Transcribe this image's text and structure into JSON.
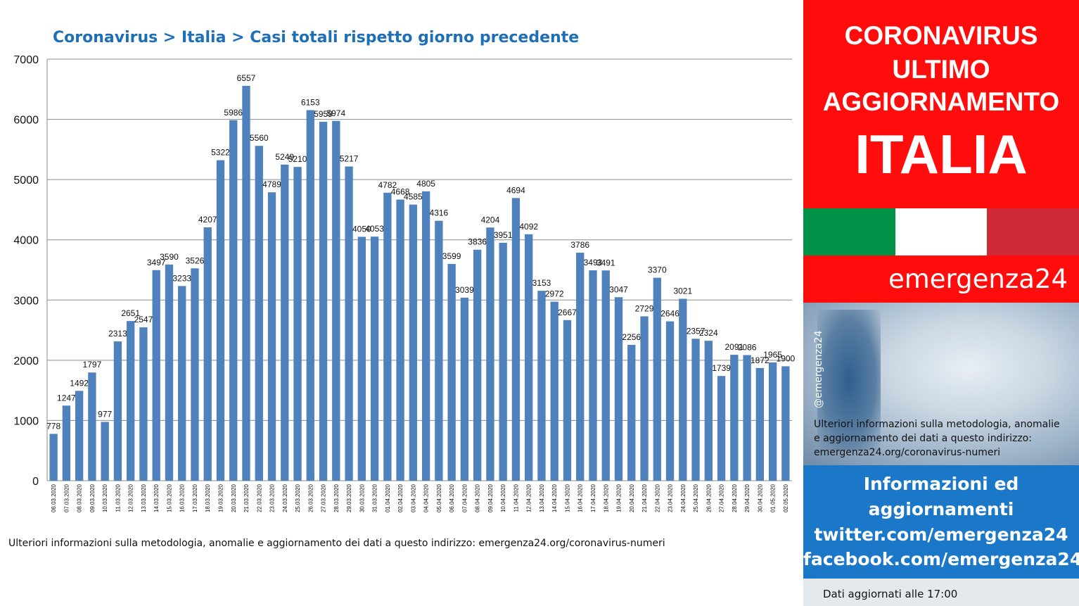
{
  "chart_data": {
    "type": "bar",
    "title": "Coronavirus > Italia > Casi totali rispetto giorno precedente",
    "categories": [
      "06.03.2020",
      "07.03.2020",
      "08.03.2020",
      "09.03.2020",
      "10.03.2020",
      "11.03.2020",
      "12.03.2020",
      "13.03.2020",
      "14.03.2020",
      "15.03.2020",
      "16.03.2020",
      "17.03.2020",
      "18.03.2020",
      "19.03.2020",
      "20.03.2020",
      "21.03.2020",
      "22.03.2020",
      "23.03.2020",
      "24.03.2020",
      "25.03.2020",
      "26.03.2020",
      "27.03.2020",
      "28.03.2020",
      "29.03.2020",
      "30.03.2020",
      "31.03.2020",
      "01.04.2020",
      "02.04.2020",
      "03.04.2020",
      "04.04.2020",
      "05.04.2020",
      "06.04.2020",
      "07.04.2020",
      "08.04.2020",
      "09.04.2020",
      "10.04.2020",
      "11.04.2020",
      "12.04.2020",
      "13.04.2020",
      "14.04.2020",
      "15.04.2020",
      "16.04.2020",
      "17.04.2020",
      "18.04.2020",
      "19.04.2020",
      "20.04.2020",
      "21.04.2020",
      "22.04.2020",
      "23.04.2020",
      "24.04.2020",
      "25.04.2020",
      "26.04.2020",
      "27.04.2020",
      "28.04.2020",
      "29.04.2020",
      "30.04.2020",
      "01.05.2020",
      "02.05.2020"
    ],
    "values": [
      778,
      1247,
      1492,
      1797,
      977,
      2313,
      2651,
      2547,
      3497,
      3590,
      3233,
      3526,
      4207,
      5322,
      5986,
      6557,
      5560,
      4789,
      5249,
      5210,
      6153,
      5959,
      5974,
      5217,
      4050,
      4053,
      4782,
      4668,
      4585,
      4805,
      4316,
      3599,
      3039,
      3836,
      4204,
      3951,
      4694,
      4092,
      3153,
      2972,
      2667,
      3786,
      3493,
      3491,
      3047,
      2256,
      2729,
      3370,
      2646,
      3021,
      2357,
      2324,
      1739,
      2091,
      2086,
      1872,
      1965,
      1900
    ],
    "yticks": [
      "0",
      "1000",
      "2000",
      "3000",
      "4000",
      "5000",
      "6000",
      "7000"
    ],
    "ylim": [
      0,
      7000
    ],
    "grid": true,
    "bar_color": "#4f81bd",
    "label_color": "#111111"
  },
  "footnote": "Ulteriori informazioni sulla metodologia, anomalie e aggiornamento dei dati a questo indirizzo: emergenza24.org/coronavirus-numeri",
  "sidebar": {
    "headline": [
      "CORONAVIRUS",
      "ULTIMO",
      "AGGIORNAMENTO"
    ],
    "country": "ITALIA",
    "flag_colors": [
      "#009246",
      "#ffffff",
      "#ce2b37"
    ],
    "brand": "emergenza24",
    "handle": "@emergenza24",
    "note_lines": [
      "Ulteriori informazioni sulla metodologia, anomalie",
      "e aggiornamento dei dati a questo indirizzo:",
      "emergenza24.org/coronavirus-numeri"
    ],
    "info_lines": [
      "Informazioni ed",
      "aggiornamenti",
      "twitter.com/emergenza24",
      "facebook.com/emergenza24"
    ],
    "update_text": "Dati aggiornati alle 17:00"
  }
}
